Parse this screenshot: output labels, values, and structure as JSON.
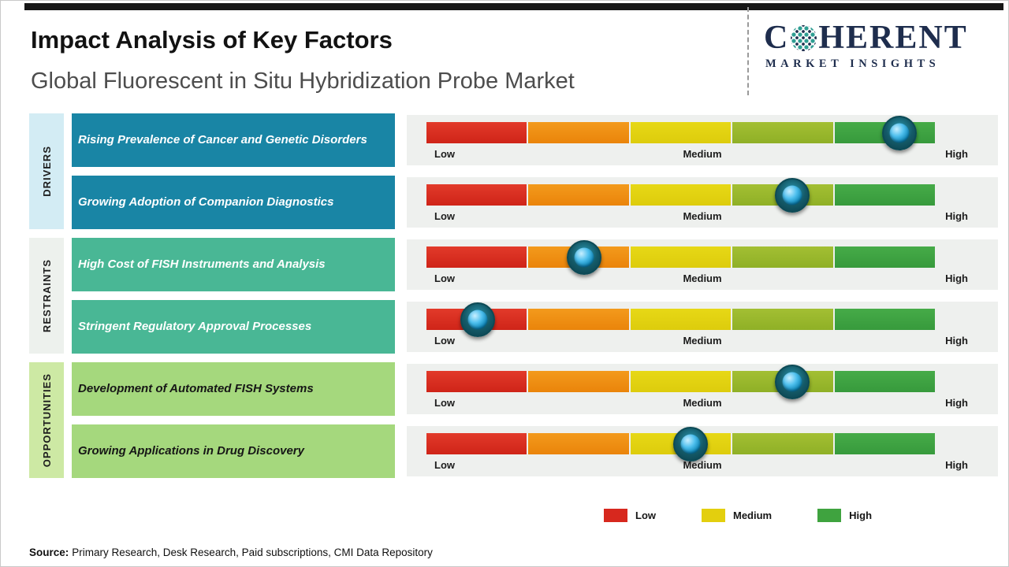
{
  "header": {
    "title": "Impact Analysis of Key Factors",
    "subtitle": "Global Fluorescent in Situ Hybridization Probe Market"
  },
  "logo": {
    "word_start": "C",
    "word_end": "HERENT",
    "tagline": "MARKET INSIGHTS"
  },
  "scale": {
    "low": "Low",
    "medium": "Medium",
    "high": "High"
  },
  "chart_data": {
    "type": "impact-scale",
    "scale_labels": [
      "Low",
      "Medium",
      "High"
    ],
    "segment_colors": [
      "#d7281e",
      "#ef8c13",
      "#e3d20f",
      "#9ab929",
      "#3fa33f"
    ],
    "groups": [
      {
        "label": "DRIVERS",
        "band_color": "#d3ecf4",
        "card_color": "#1985a5"
      },
      {
        "label": "RESTRAINTS",
        "band_color": "#edf1ed",
        "card_color": "#49b795"
      },
      {
        "label": "OPPORTUNITIES",
        "band_color": "#cde9a4",
        "card_color": "#a5d87d"
      }
    ],
    "rows": [
      {
        "group": "DRIVERS",
        "factor": "Rising Prevalence of Cancer and Genetic Disorders",
        "impact_pct": 93,
        "impact_level": "High"
      },
      {
        "group": "DRIVERS",
        "factor": "Growing Adoption of Companion Diagnostics",
        "impact_pct": 72,
        "impact_level": "Medium-High"
      },
      {
        "group": "RESTRAINTS",
        "factor": "High Cost of FISH Instruments and Analysis",
        "impact_pct": 31,
        "impact_level": "Low-Medium"
      },
      {
        "group": "RESTRAINTS",
        "factor": "Stringent Regulatory Approval Processes",
        "impact_pct": 10,
        "impact_level": "Low"
      },
      {
        "group": "OPPORTUNITIES",
        "factor": "Development of Automated FISH Systems",
        "impact_pct": 72,
        "impact_level": "Medium-High"
      },
      {
        "group": "OPPORTUNITIES",
        "factor": "Growing Applications in Drug Discovery",
        "impact_pct": 52,
        "impact_level": "Medium"
      }
    ]
  },
  "legend": [
    {
      "label": "Low",
      "color": "#d7281e"
    },
    {
      "label": "Medium",
      "color": "#e3cf0e"
    },
    {
      "label": "High",
      "color": "#3fa33f"
    }
  ],
  "source": {
    "label": "Source:",
    "text": "Primary Research, Desk Research, Paid subscriptions, CMI Data Repository"
  }
}
